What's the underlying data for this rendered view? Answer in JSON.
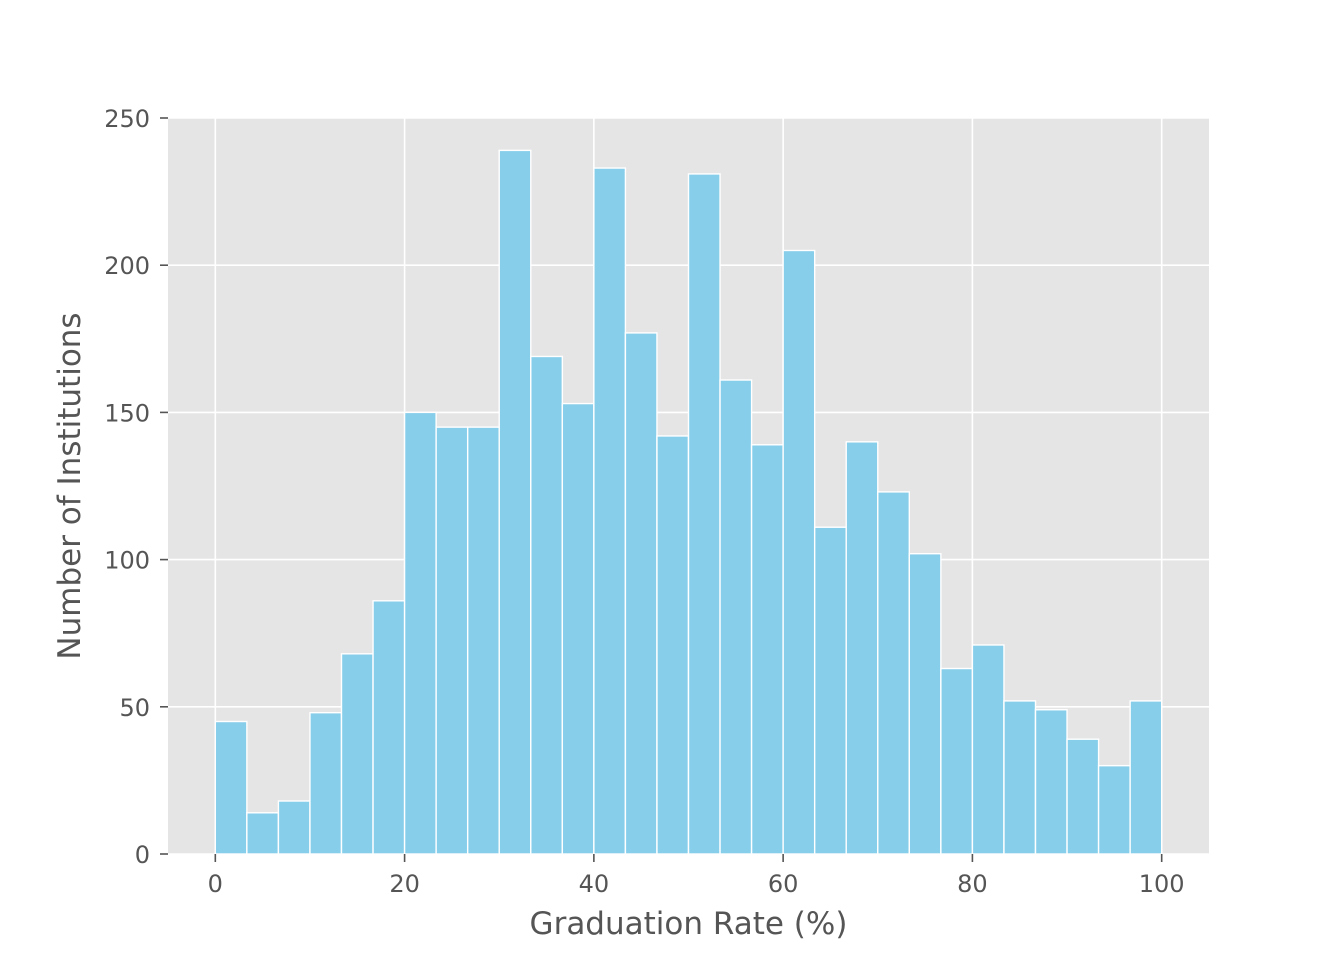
{
  "chart_data": {
    "type": "bar",
    "title": "",
    "xlabel": "Graduation Rate (%)",
    "ylabel": "Number of Institutions",
    "xlim": [
      -5,
      105
    ],
    "ylim": [
      0,
      250
    ],
    "xticks": [
      0,
      20,
      40,
      60,
      80,
      100
    ],
    "yticks": [
      0,
      50,
      100,
      150,
      200,
      250
    ],
    "grid": true,
    "background": "#e5e5e5",
    "bar_color": "#87ceeb",
    "bin_edges": [
      0,
      3.333,
      6.667,
      10,
      13.333,
      16.667,
      20,
      23.333,
      26.667,
      30,
      33.333,
      36.667,
      40,
      43.333,
      46.667,
      50,
      53.333,
      56.667,
      60,
      63.333,
      66.667,
      70,
      73.333,
      76.667,
      80,
      83.333,
      86.667,
      90,
      93.333,
      96.667,
      100
    ],
    "values": [
      45,
      14,
      18,
      48,
      68,
      86,
      150,
      145,
      145,
      239,
      169,
      153,
      233,
      177,
      142,
      231,
      161,
      139,
      205,
      111,
      140,
      123,
      102,
      63,
      71,
      52,
      49,
      39,
      30,
      52
    ]
  }
}
